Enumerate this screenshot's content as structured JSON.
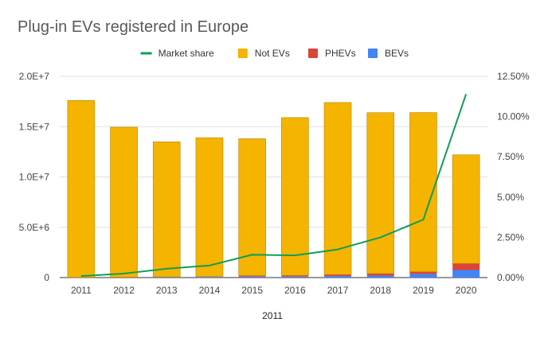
{
  "chart_data": {
    "type": "bar",
    "stacked": true,
    "title": "Plug-in EVs registered in Europe",
    "xlabel": "2011",
    "categories": [
      "2011",
      "2012",
      "2013",
      "2014",
      "2015",
      "2016",
      "2017",
      "2018",
      "2019",
      "2020"
    ],
    "series": [
      {
        "name": "BEVs",
        "axis": "left",
        "color": "#4285f4",
        "values": [
          12000,
          20000,
          40000,
          60000,
          95000,
          100000,
          150000,
          200000,
          360000,
          750000
        ]
      },
      {
        "name": "PHEVs",
        "axis": "left",
        "color": "#db4437",
        "values": [
          3000,
          10000,
          25000,
          40000,
          100000,
          115000,
          150000,
          200000,
          225000,
          650000
        ]
      },
      {
        "name": "Not EVs",
        "axis": "left",
        "color": "#f4b400",
        "values": [
          17585000,
          14920000,
          13425000,
          13800000,
          13605000,
          15685000,
          17100000,
          15990000,
          15815000,
          10800000
        ]
      },
      {
        "name": "Market share",
        "axis": "right",
        "type": "line",
        "color": "#0f9d58",
        "values": [
          0.0009,
          0.0025,
          0.0055,
          0.0075,
          0.0142,
          0.0138,
          0.0175,
          0.025,
          0.036,
          0.114
        ]
      }
    ],
    "legend_order": [
      "Market share",
      "Not EVs",
      "PHEVs",
      "BEVs"
    ],
    "legend_position": "top",
    "y_left": {
      "min": 0,
      "max": 20000000,
      "ticks": [
        0,
        5000000,
        10000000,
        15000000,
        20000000
      ],
      "tick_labels": [
        "0",
        "5.0E+6",
        "1.0E+7",
        "1.5E+7",
        "2.0E+7"
      ]
    },
    "y_right": {
      "min": 0,
      "max": 0.125,
      "ticks": [
        0,
        0.025,
        0.05,
        0.075,
        0.1,
        0.125
      ],
      "tick_labels": [
        "0.00%",
        "2.50%",
        "5.00%",
        "7.50%",
        "10.00%",
        "12.50%"
      ]
    },
    "grid": true
  }
}
